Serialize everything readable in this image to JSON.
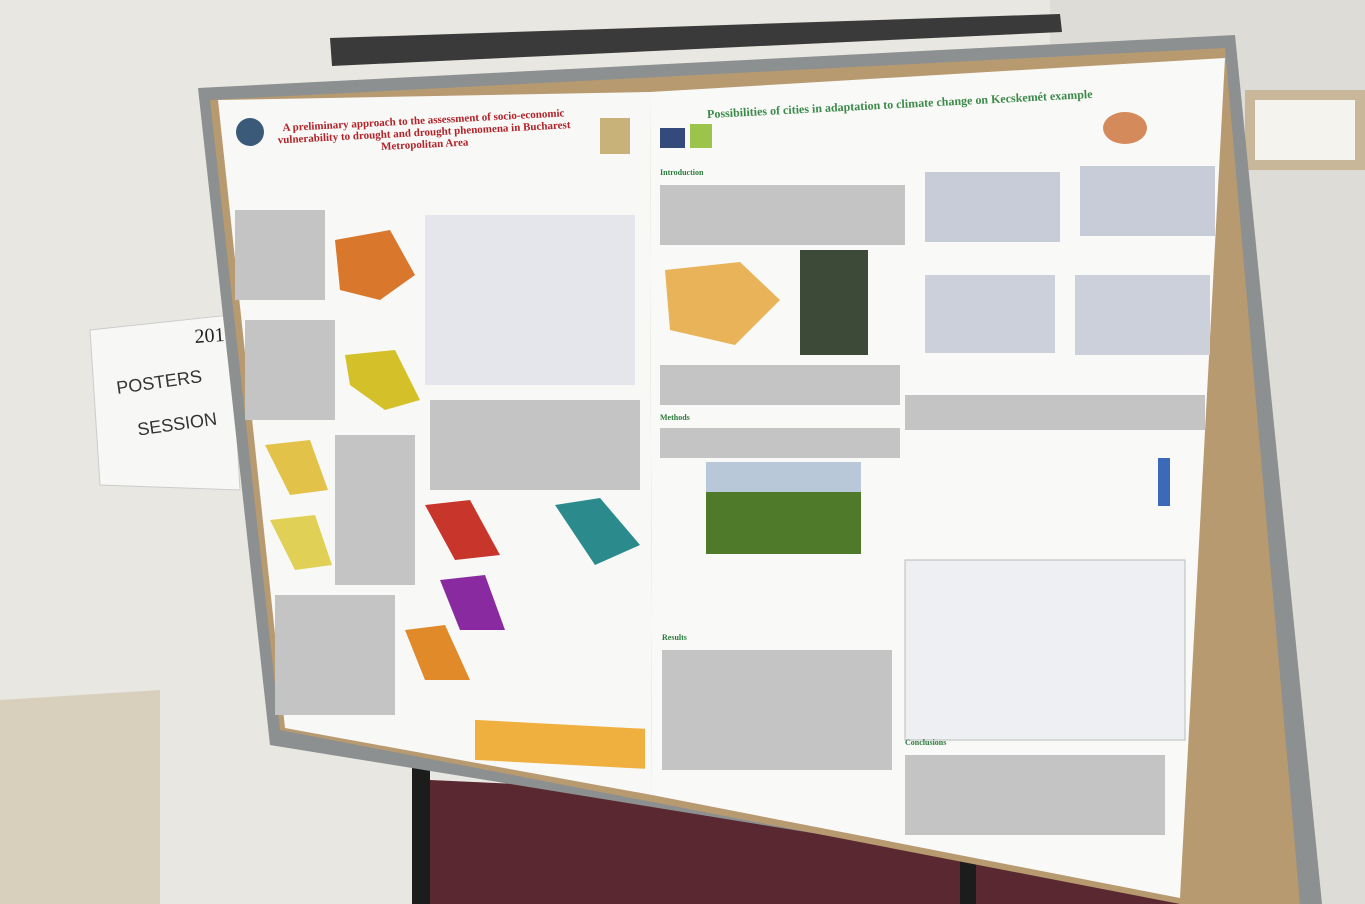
{
  "sign": {
    "year": "201",
    "line1": "POSTERS",
    "line2": "SESSION"
  },
  "posters": [
    {
      "title": "A preliminary approach to the assessment of socio-economic vulnerability to drought and drought phenomena in Bucharest Metropolitan Area"
    },
    {
      "title": "Possibilities of cities in adaptation to climate change on Kecskemét example",
      "sections": [
        "Introduction",
        "Methods",
        "Results",
        "Conclusions"
      ]
    }
  ]
}
